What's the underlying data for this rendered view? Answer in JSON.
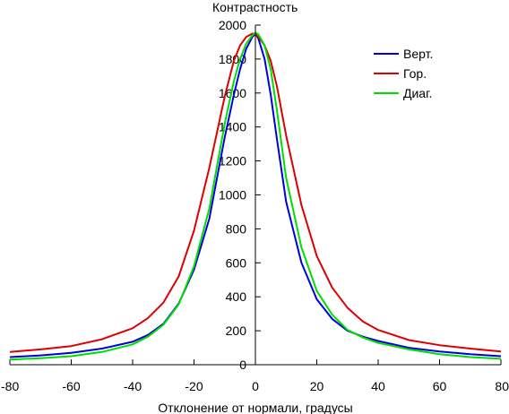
{
  "chart_data": {
    "type": "line",
    "title": "",
    "xlabel": "Отклонение от нормали, градусы",
    "ylabel": "Контрастность",
    "xlim": [
      -80,
      80
    ],
    "ylim": [
      0,
      2000
    ],
    "xticks": [
      -80,
      -60,
      -40,
      -20,
      0,
      20,
      40,
      60,
      80
    ],
    "yticks": [
      0,
      200,
      400,
      600,
      800,
      1000,
      1200,
      1400,
      1600,
      1800,
      2000
    ],
    "grid": false,
    "legend": "top-right",
    "series": [
      {
        "name": "Верт.",
        "color": "#0000dd",
        "x": [
          -80,
          -70,
          -60,
          -50,
          -40,
          -35,
          -30,
          -25,
          -20,
          -15,
          -10,
          -7,
          -5,
          -3,
          -1,
          0,
          1,
          3,
          5,
          7,
          10,
          15,
          20,
          25,
          30,
          35,
          40,
          50,
          60,
          70,
          80
        ],
        "y": [
          45,
          55,
          70,
          95,
          135,
          175,
          240,
          360,
          560,
          860,
          1340,
          1590,
          1740,
          1860,
          1930,
          1950,
          1920,
          1800,
          1590,
          1330,
          960,
          600,
          385,
          270,
          200,
          165,
          140,
          100,
          78,
          62,
          50
        ]
      },
      {
        "name": "Гор.",
        "color": "#dd0000",
        "x": [
          -80,
          -70,
          -60,
          -50,
          -40,
          -35,
          -30,
          -25,
          -20,
          -15,
          -10,
          -7,
          -5,
          -3,
          -1,
          0,
          1,
          3,
          5,
          7,
          10,
          15,
          20,
          25,
          30,
          35,
          40,
          50,
          60,
          70,
          80
        ],
        "y": [
          75,
          90,
          110,
          150,
          215,
          275,
          365,
          520,
          790,
          1160,
          1580,
          1790,
          1880,
          1930,
          1950,
          1945,
          1930,
          1880,
          1790,
          1640,
          1350,
          940,
          640,
          455,
          335,
          255,
          205,
          145,
          115,
          95,
          78
        ]
      },
      {
        "name": "Диаг.",
        "color": "#00dd00",
        "x": [
          -80,
          -70,
          -60,
          -50,
          -40,
          -35,
          -30,
          -25,
          -20,
          -15,
          -10,
          -7,
          -5,
          -3,
          -1,
          0,
          1,
          3,
          5,
          7,
          10,
          15,
          20,
          25,
          30,
          35,
          40,
          50,
          60,
          70,
          80
        ],
        "y": [
          30,
          38,
          50,
          75,
          120,
          165,
          235,
          355,
          580,
          920,
          1420,
          1670,
          1800,
          1890,
          1940,
          1955,
          1945,
          1880,
          1740,
          1500,
          1100,
          690,
          435,
          295,
          205,
          160,
          128,
          90,
          62,
          45,
          35
        ]
      }
    ]
  }
}
